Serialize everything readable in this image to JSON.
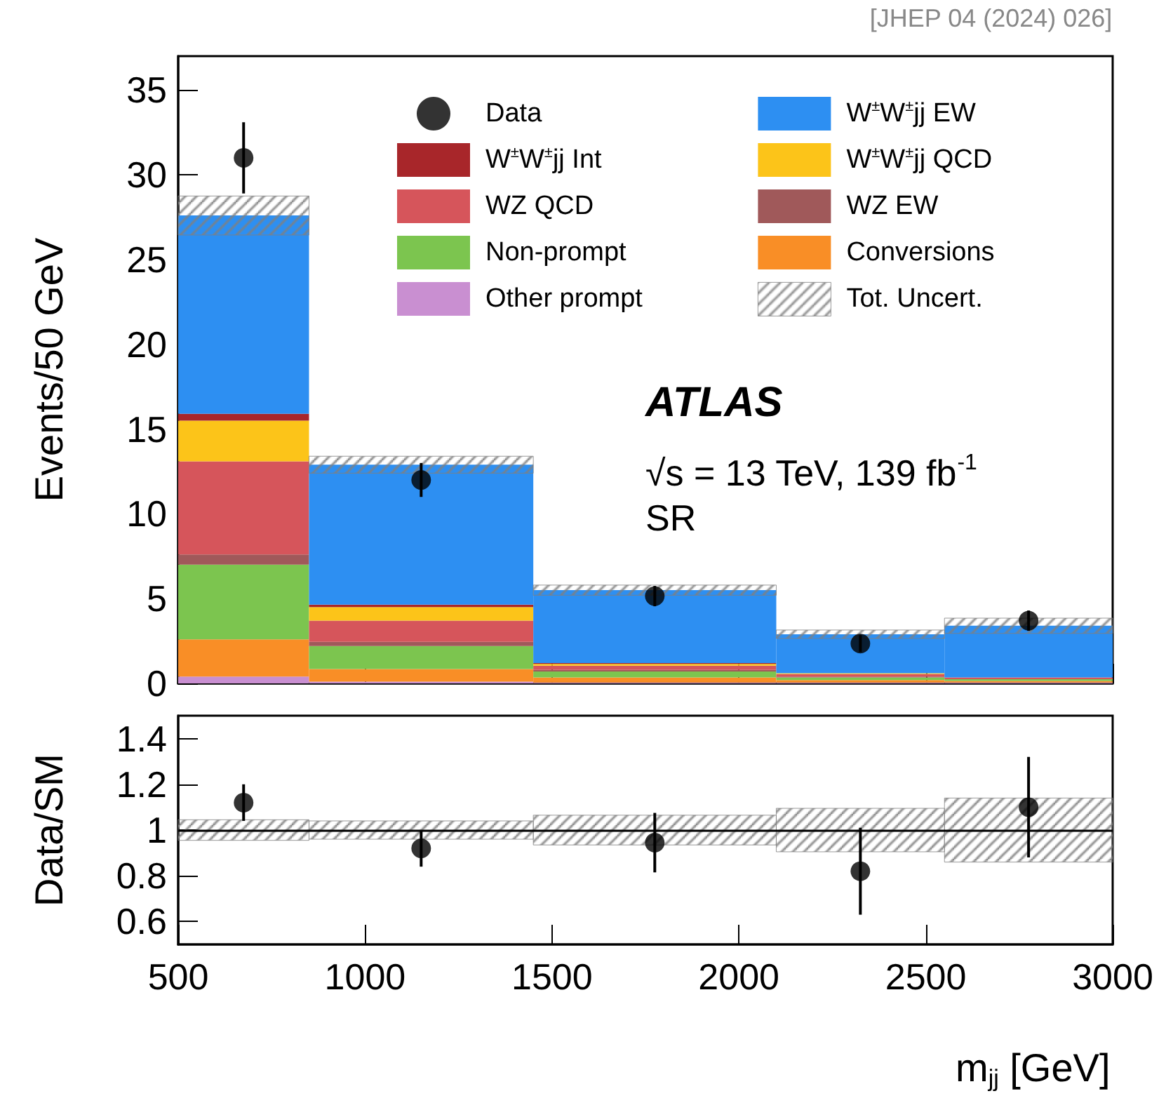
{
  "chart_data": [
    {
      "type": "histogram",
      "bins": [
        500,
        850,
        1450,
        2100,
        2550,
        3000
      ],
      "ylabel": "Events/50 GeV",
      "xlim": [
        500,
        3000
      ],
      "xticks": [
        500,
        1000,
        1500,
        2000,
        2500,
        3000
      ],
      "ylim": [
        0,
        37
      ],
      "yticks": [
        0,
        5,
        10,
        15,
        20,
        25,
        30,
        35
      ],
      "tick_labels": "y",
      "legend": "top right",
      "grid": false,
      "marker": "circle",
      "annotations": [
        "ATLAS",
        "√s = 13 TeV, 139 fb$^{-1}$",
        "SR",
        "[JHEP 04 (2024) 026]"
      ],
      "series": [
        {
          "name": "Data",
          "type": "scatter",
          "color": "#000000",
          "x": [
            675,
            1150,
            1775,
            2325,
            2775
          ],
          "values": [
            31,
            12,
            5.15,
            2.35,
            3.7
          ],
          "errors": [
            2.1,
            1.0,
            0.6,
            0.5,
            0.6
          ]
        },
        {
          "name": "Other prompt",
          "color": "#c98fd1",
          "base": [
            0,
            0,
            0,
            0,
            0
          ],
          "values": [
            0.4,
            0.1,
            0.05,
            0.05,
            0.05
          ]
        },
        {
          "name": "Conversions",
          "color": "#f98e26",
          "base": [
            0.4,
            0.1,
            0.05,
            0.05,
            0.05
          ],
          "values": [
            2.2,
            0.75,
            0.3,
            0.15,
            0.1
          ]
        },
        {
          "name": "Non-prompt",
          "color": "#7cc54f",
          "base": [
            2.6,
            0.85,
            0.35,
            0.2,
            0.15
          ],
          "values": [
            4.4,
            1.35,
            0.35,
            0.15,
            0.1
          ]
        },
        {
          "name": "WZ EW",
          "color": "#a0595a",
          "base": [
            7.0,
            2.2,
            0.7,
            0.35,
            null
          ],
          "values": [
            0.6,
            0.25,
            0.1,
            0.05,
            null
          ]
        },
        {
          "name": "WZ QCD",
          "color": "#d6555b",
          "base": [
            7.6,
            2.45,
            0.8,
            0.4,
            0.25
          ],
          "values": [
            5.5,
            1.25,
            0.25,
            0.15,
            0.1
          ]
        },
        {
          "name": "W$^{±}$W$^{±}$jj QCD",
          "color": "#fcc419",
          "base": [
            13.1,
            3.7,
            1.05,
            0.55,
            null
          ],
          "values": [
            2.4,
            0.8,
            0.1,
            0.05,
            null
          ]
        },
        {
          "name": "W$^{±}$W$^{±}$jj Int",
          "color": "#a8262a",
          "base": [
            15.5,
            4.5,
            1.15,
            null,
            null
          ],
          "values": [
            0.4,
            0.15,
            0.05,
            null,
            null
          ]
        },
        {
          "name": "W$^{±}$W$^{±}$jj EW",
          "color": "#2d8ff2",
          "base": [
            15.9,
            4.65,
            1.2,
            0.6,
            0.35
          ],
          "values": [
            11.7,
            8.25,
            4.3,
            2.3,
            3.05
          ]
        },
        {
          "name": "Tot. Uncert.",
          "color": "#808080",
          "base": [
            26.45,
            12.4,
            5.2,
            2.65,
            2.95
          ],
          "values": [
            2.3,
            1.0,
            0.6,
            0.5,
            0.9
          ]
        }
      ]
    },
    {
      "type": "histogram",
      "bins": [
        500,
        850,
        1450,
        2100,
        2550,
        3000
      ],
      "ylabel": "Data/SM",
      "xlabel": "m$_{jj}$ [GeV]",
      "xlim": [
        500,
        3000
      ],
      "xticks": [
        500,
        1000,
        1500,
        2000,
        2500,
        3000
      ],
      "ylim": [
        0.5,
        1.5
      ],
      "yticks": [
        0.6,
        0.8,
        1,
        1.2,
        1.4
      ],
      "grid": false,
      "marker": "circle",
      "ref_lines": [
        {
          "axis": "y",
          "value": 1,
          "color": "#000000",
          "line_style": "solid"
        }
      ],
      "series": [
        {
          "color": "#808080",
          "base": [
            0.955,
            0.96,
            0.935,
            0.905,
            0.86
          ],
          "values": [
            0.09,
            0.08,
            0.13,
            0.19,
            0.28
          ]
        },
        {
          "type": "scatter",
          "color": "#000000",
          "x": [
            675,
            1150,
            1775,
            2325,
            2775
          ],
          "values": [
            1.12,
            0.92,
            0.945,
            0.82,
            1.1
          ],
          "errors": [
            0.08,
            0.08,
            0.13,
            0.19,
            0.22
          ]
        }
      ]
    }
  ]
}
